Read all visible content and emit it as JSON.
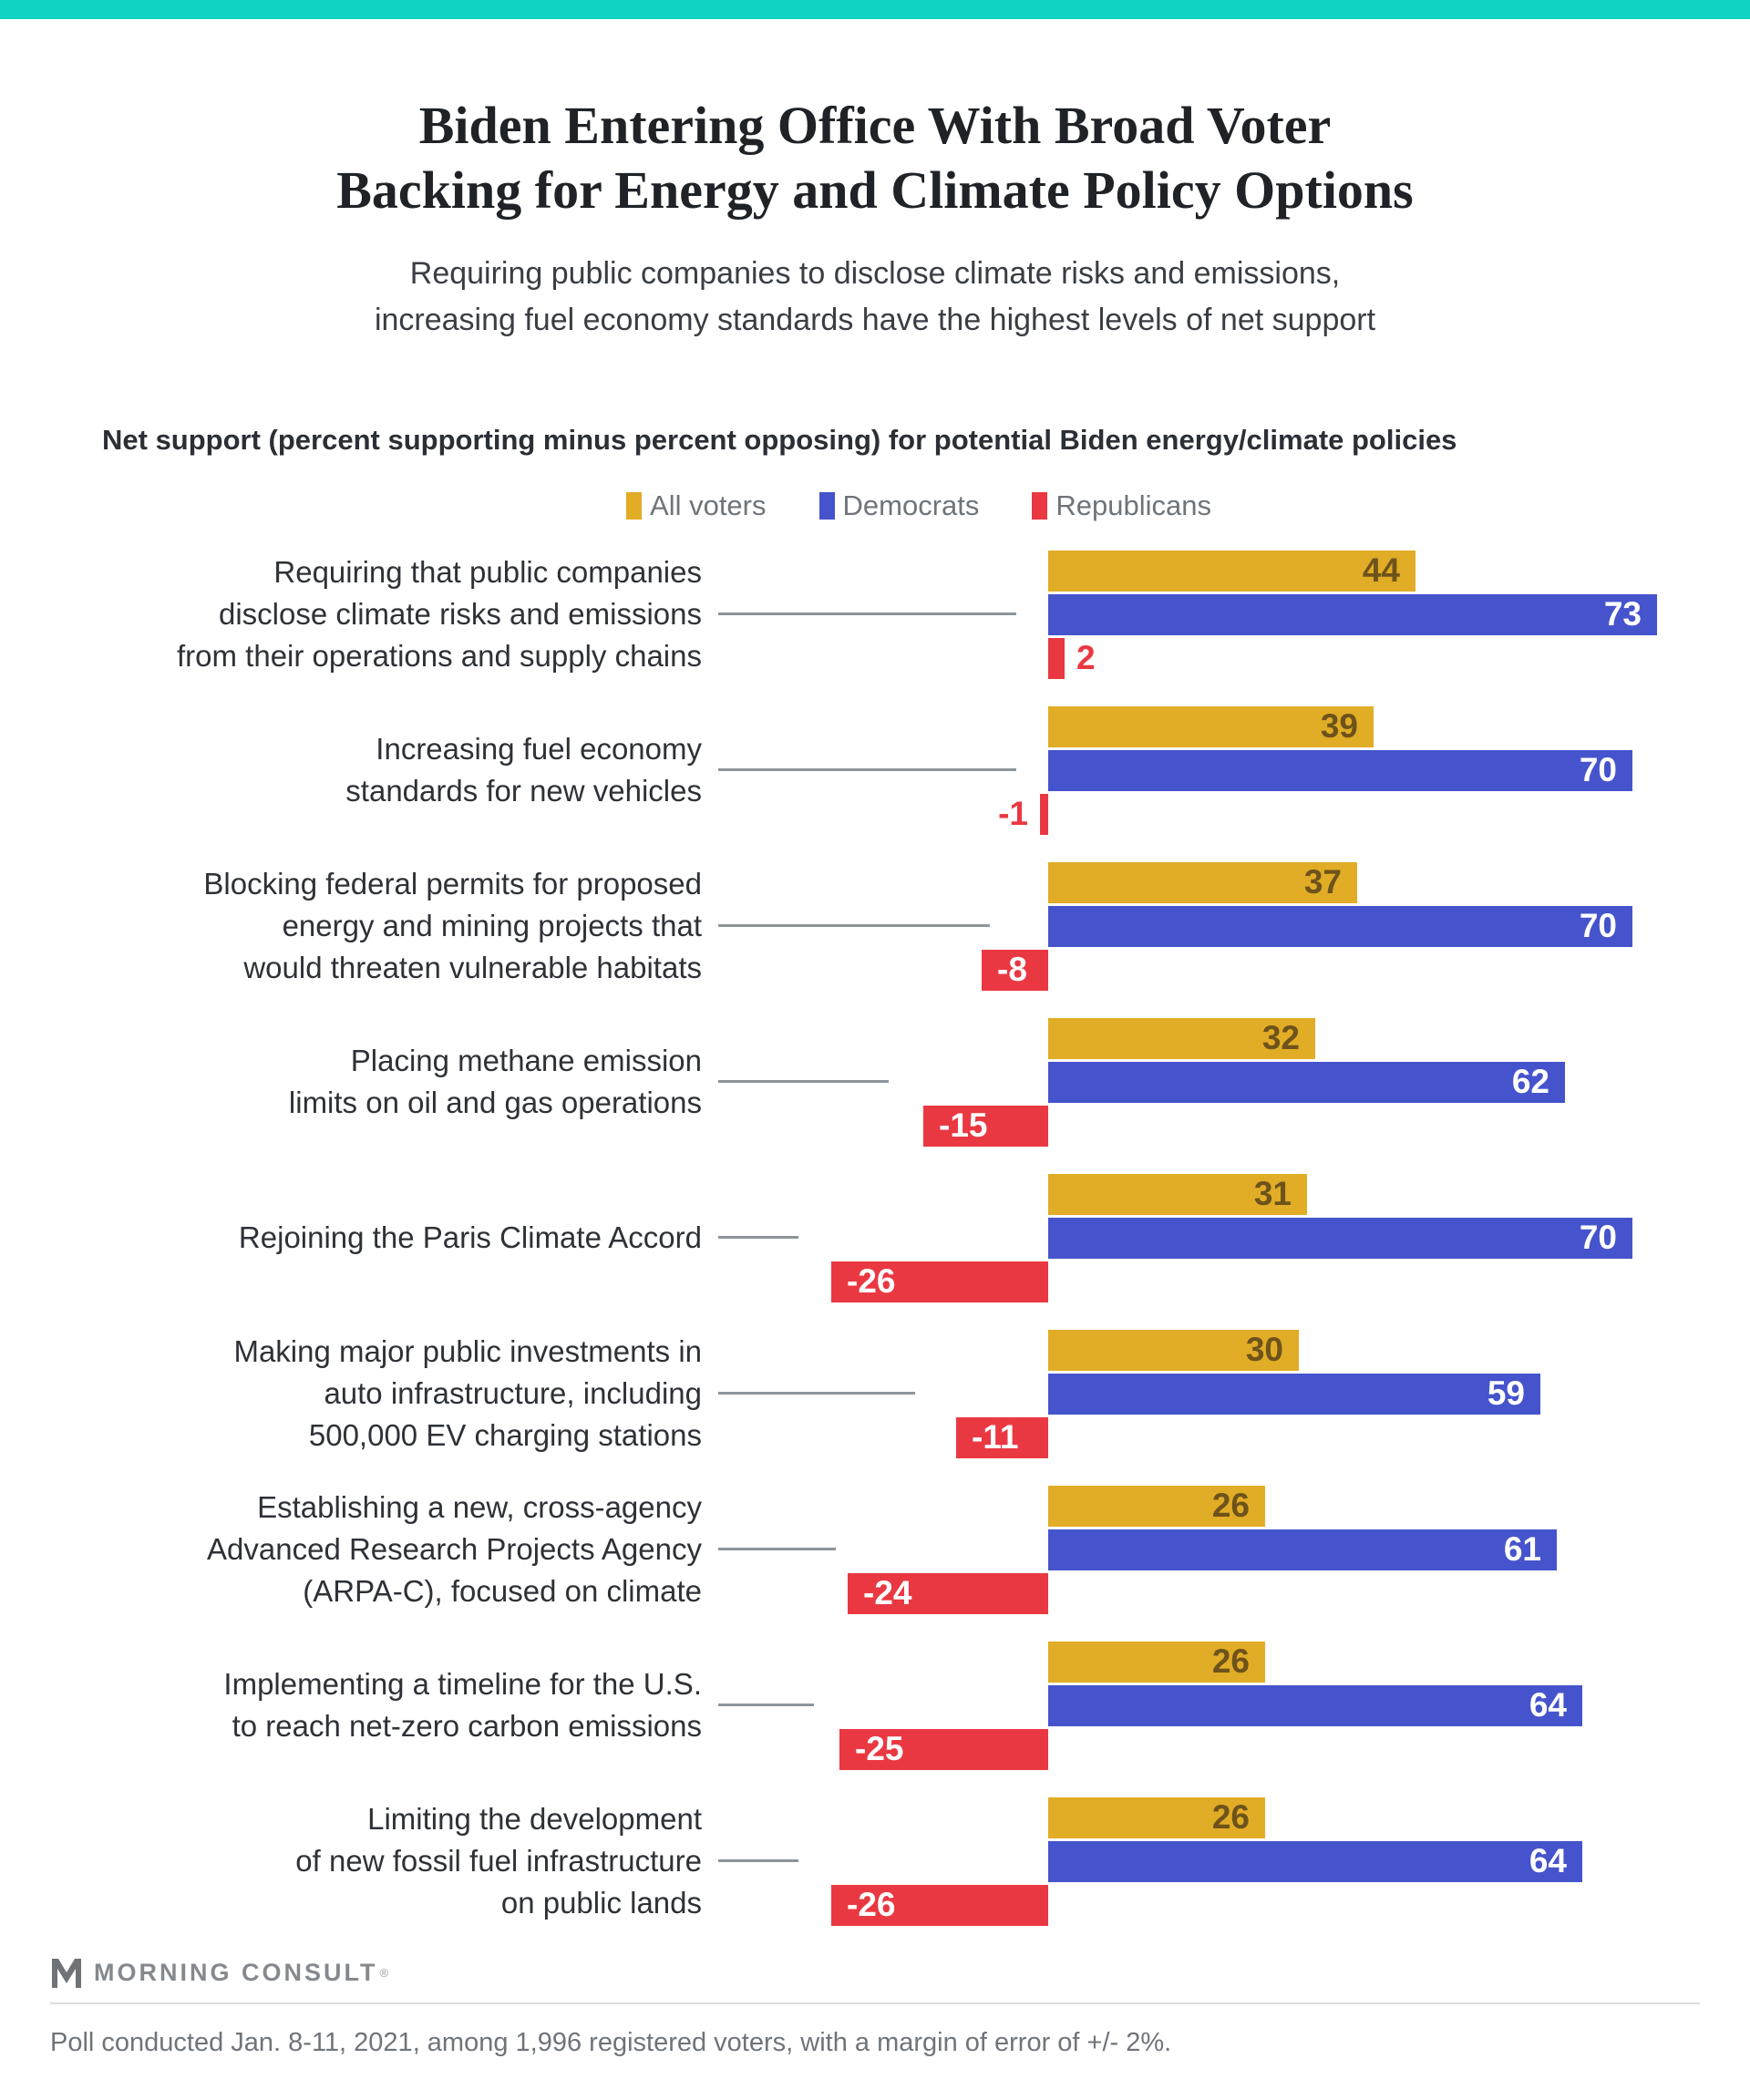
{
  "page": {
    "accent_color": "#11d3c4",
    "title_line1": "Biden Entering Office With Broad Voter",
    "title_line2": "Backing for Energy and Climate Policy Options",
    "subtitle_line1": "Requiring public companies to disclose climate risks and emissions,",
    "subtitle_line2": "increasing fuel economy standards have the highest levels of net support",
    "section_heading": "Net support (percent supporting minus percent opposing) for potential Biden energy/climate policies"
  },
  "legend": [
    {
      "label": "All voters",
      "color": "#e1ac26"
    },
    {
      "label": "Democrats",
      "color": "#4554cc"
    },
    {
      "label": "Republicans",
      "color": "#ea3842"
    }
  ],
  "chart_data": {
    "type": "bar",
    "orientation": "horizontal",
    "title": "Net support (percent supporting minus percent opposing) for potential Biden energy/climate policies",
    "xlabel": "",
    "ylabel": "",
    "xlim": [
      -30,
      80
    ],
    "grid": false,
    "legend_position": "top-center",
    "value_labels": true,
    "categories": [
      "Requiring that public companies disclose climate risks and emissions from their operations and supply chains",
      "Increasing fuel economy standards for new vehicles",
      "Blocking federal permits for proposed energy and mining projects that would threaten vulnerable habitats",
      "Placing methane emission limits on oil and gas operations",
      "Rejoining the Paris Climate Accord",
      "Making major public investments in auto infrastructure, including 500,000 EV charging stations",
      "Establishing a new, cross-agency Advanced Research Projects Agency (ARPA-C), focused on climate",
      "Implementing a timeline for the U.S. to reach net-zero carbon emissions",
      "Limiting the development of new fossil fuel infrastructure on public lands"
    ],
    "category_label_lines": [
      [
        "Requiring that public companies",
        "disclose climate risks and emissions",
        "from their operations and supply chains"
      ],
      [
        "Increasing fuel economy",
        "standards for new vehicles"
      ],
      [
        "Blocking federal permits for proposed",
        "energy and mining projects that",
        "would threaten vulnerable habitats"
      ],
      [
        "Placing methane emission",
        "limits on oil and gas operations"
      ],
      [
        "Rejoining the Paris Climate Accord"
      ],
      [
        "Making major public investments in",
        "auto infrastructure, including",
        "500,000 EV charging stations"
      ],
      [
        "Establishing a new, cross-agency",
        "Advanced Research Projects Agency",
        "(ARPA-C), focused on climate"
      ],
      [
        "Implementing a timeline for the U.S.",
        "to reach net-zero carbon emissions"
      ],
      [
        "Limiting the development",
        "of new fossil fuel infrastructure",
        "on public lands"
      ]
    ],
    "series": [
      {
        "name": "All voters",
        "color": "#e1ac26",
        "values": [
          44,
          39,
          37,
          32,
          31,
          30,
          26,
          26,
          26
        ]
      },
      {
        "name": "Democrats",
        "color": "#4554cc",
        "values": [
          73,
          70,
          70,
          62,
          70,
          59,
          61,
          64,
          64
        ]
      },
      {
        "name": "Republicans",
        "color": "#ea3842",
        "values": [
          2,
          -1,
          -8,
          -15,
          -26,
          -11,
          -24,
          -25,
          -26
        ]
      }
    ]
  },
  "footer": {
    "logo_text": "MORNING CONSULT",
    "registered": "®",
    "note": "Poll conducted Jan. 8-11, 2021, among 1,996 registered voters, with a margin of error of +/- 2%."
  }
}
